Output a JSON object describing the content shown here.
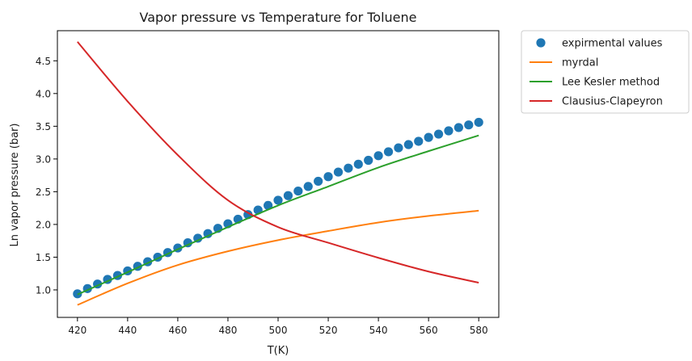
{
  "chart_data": {
    "type": "line",
    "title": "Vapor pressure vs Temperature for Toluene",
    "xlabel": "T(K)",
    "ylabel": "Ln vapor pressure (bar)",
    "xlim": [
      412,
      588
    ],
    "ylim": [
      0.58,
      4.96
    ],
    "xticks": [
      420,
      440,
      460,
      480,
      500,
      520,
      540,
      560,
      580
    ],
    "yticks": [
      1.0,
      1.5,
      2.0,
      2.5,
      3.0,
      3.5,
      4.0,
      4.5
    ],
    "ytick_labels": [
      "1.0",
      "1.5",
      "2.0",
      "2.5",
      "3.0",
      "3.5",
      "4.0",
      "4.5"
    ],
    "grid": false,
    "legend_position": "outside-top-right",
    "series": [
      {
        "name": "expirmental values",
        "style": "scatter",
        "color": "#1f77b4",
        "x": [
          420,
          424,
          428,
          432,
          436,
          440,
          444,
          448,
          452,
          456,
          460,
          464,
          468,
          472,
          476,
          480,
          484,
          488,
          492,
          496,
          500,
          504,
          508,
          512,
          516,
          520,
          524,
          528,
          532,
          536,
          540,
          544,
          548,
          552,
          556,
          560,
          564,
          568,
          572,
          576,
          580
        ],
        "y": [
          0.94,
          1.02,
          1.09,
          1.16,
          1.22,
          1.29,
          1.36,
          1.43,
          1.5,
          1.57,
          1.64,
          1.72,
          1.79,
          1.86,
          1.94,
          2.01,
          2.08,
          2.15,
          2.22,
          2.29,
          2.37,
          2.44,
          2.51,
          2.58,
          2.66,
          2.73,
          2.8,
          2.86,
          2.92,
          2.98,
          3.05,
          3.11,
          3.17,
          3.22,
          3.27,
          3.33,
          3.38,
          3.43,
          3.48,
          3.52,
          3.56
        ]
      },
      {
        "name": "myrdal",
        "style": "line",
        "color": "#ff7f0e",
        "x": [
          420,
          440,
          460,
          480,
          500,
          520,
          540,
          560,
          580
        ],
        "y": [
          0.77,
          1.1,
          1.38,
          1.59,
          1.76,
          1.9,
          2.03,
          2.13,
          2.21
        ]
      },
      {
        "name": "Lee Kesler method",
        "style": "line",
        "color": "#2ca02c",
        "x": [
          420,
          440,
          460,
          480,
          500,
          520,
          540,
          560,
          580
        ],
        "y": [
          0.93,
          1.27,
          1.62,
          1.96,
          2.29,
          2.58,
          2.87,
          3.12,
          3.36
        ]
      },
      {
        "name": "Clausius-Clapeyron",
        "style": "line",
        "color": "#d62728",
        "x": [
          420,
          440,
          460,
          480,
          500,
          520,
          540,
          560,
          580
        ],
        "y": [
          4.79,
          3.88,
          3.06,
          2.37,
          1.96,
          1.72,
          1.49,
          1.28,
          1.11
        ]
      }
    ]
  }
}
